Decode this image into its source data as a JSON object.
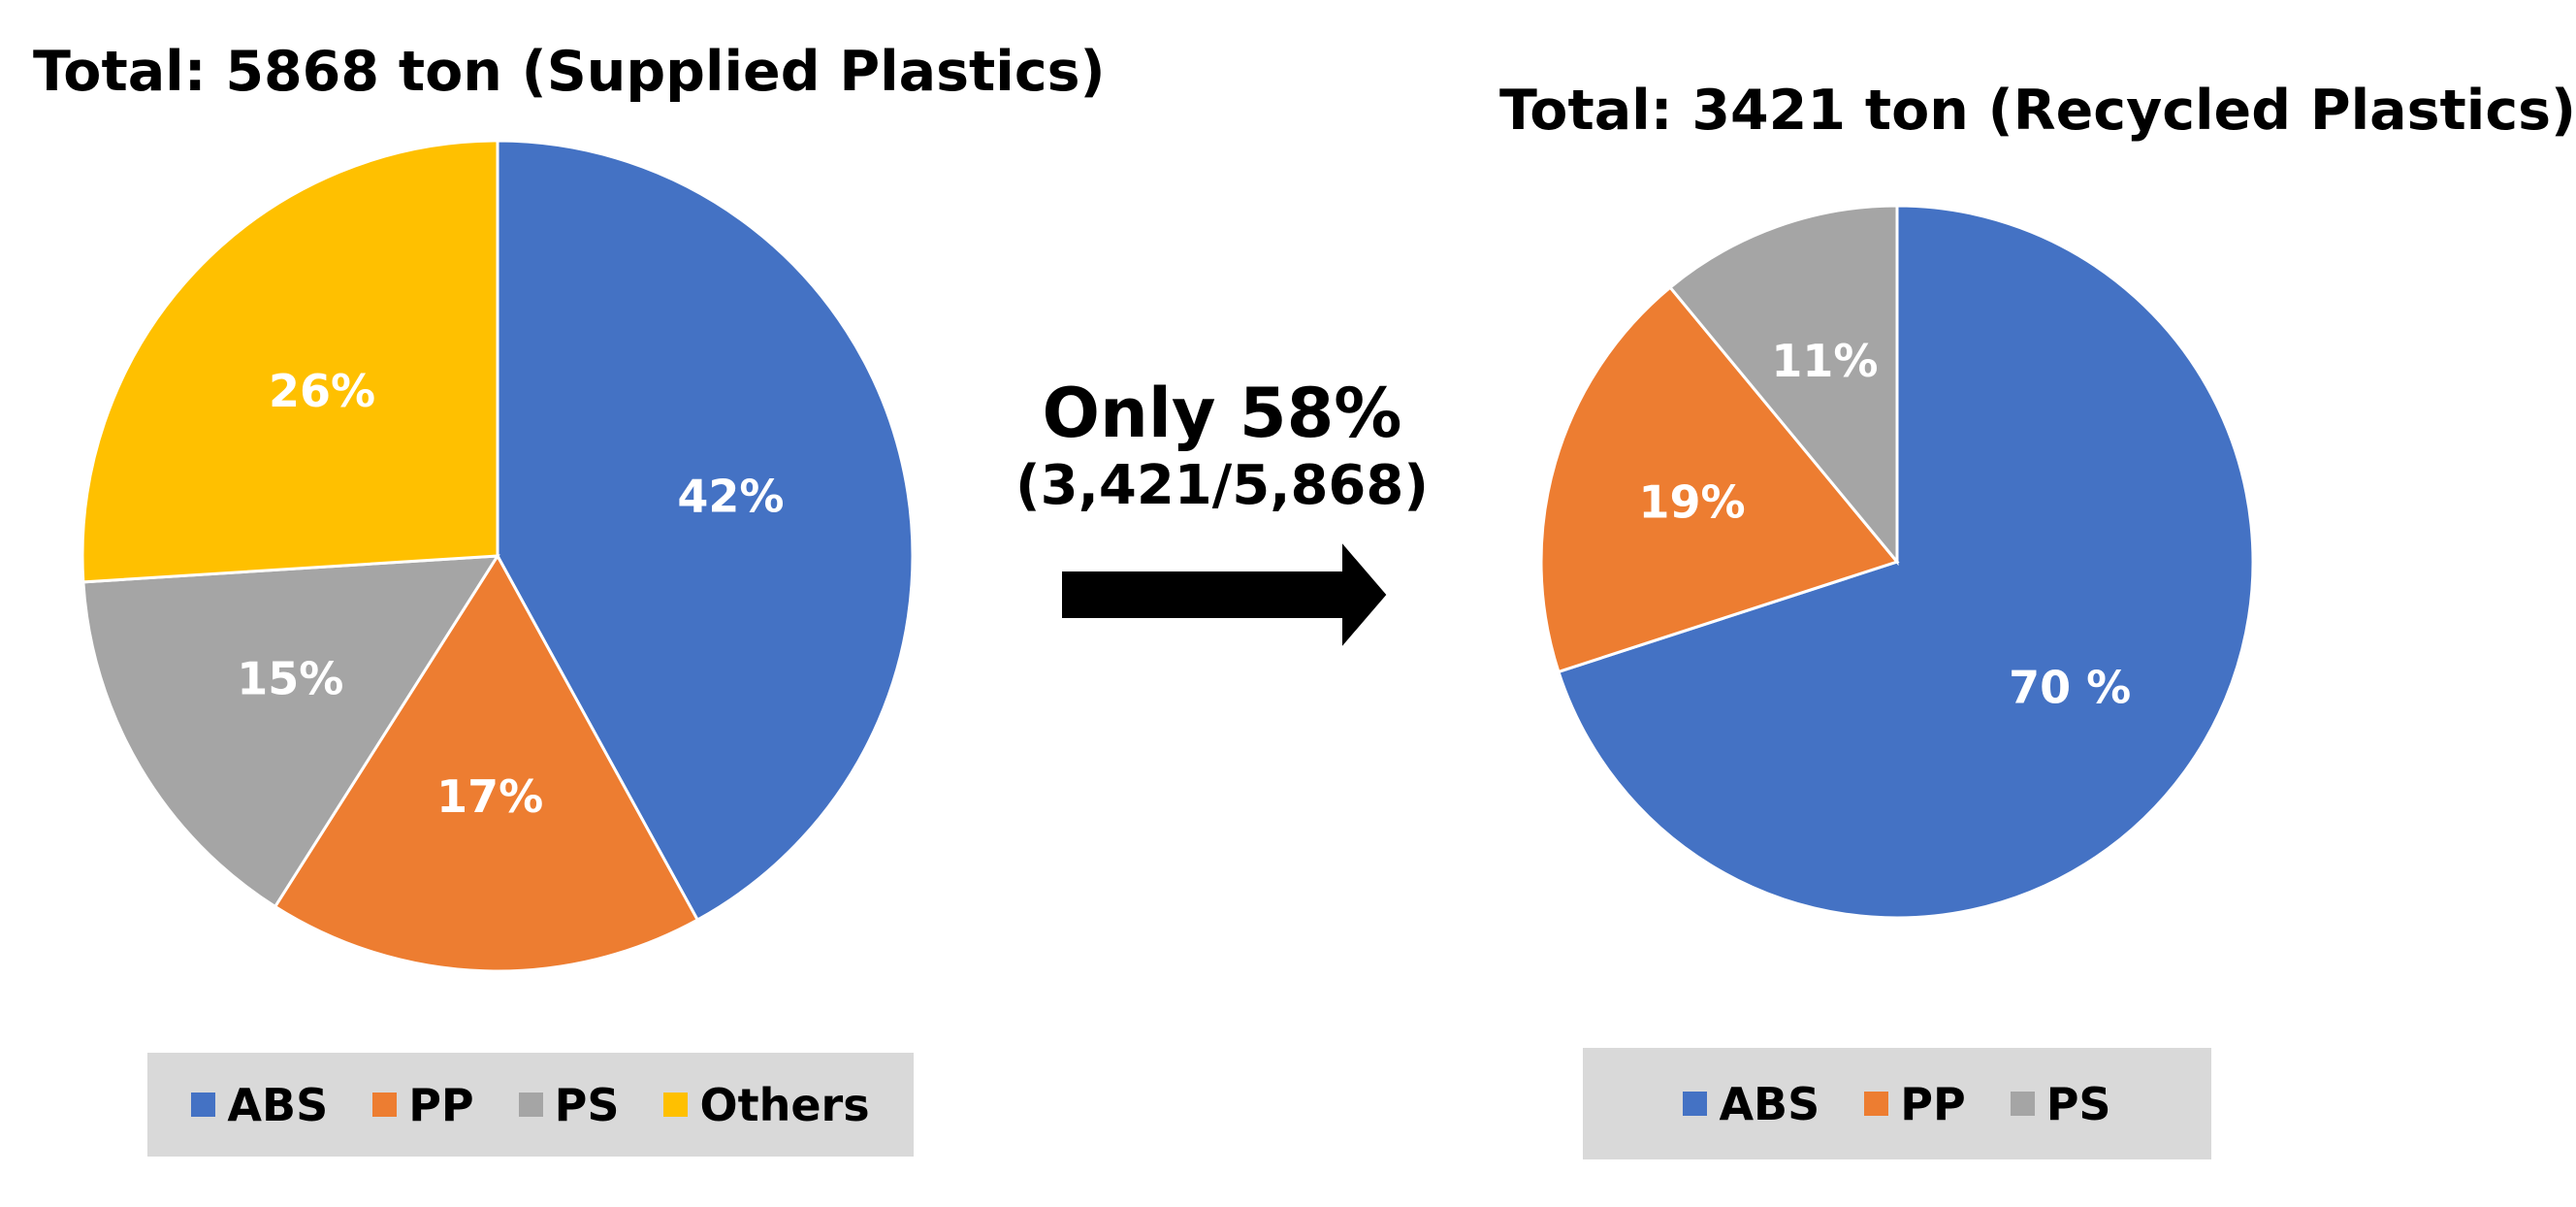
{
  "colors": {
    "ABS": "#4472c4",
    "PP": "#ed7d31",
    "PS": "#a5a5a5",
    "Others": "#ffc000"
  },
  "middle": {
    "headline": "Only 58%",
    "subline": "(3,421/5,868)"
  },
  "chart_data": [
    {
      "type": "pie",
      "title": "Total: 5868 ton (Supplied Plastics)",
      "categories": [
        "ABS",
        "PP",
        "PS",
        "Others"
      ],
      "values": [
        42,
        17,
        15,
        26
      ],
      "labels": [
        "42%",
        "17%",
        "15%",
        "26%"
      ],
      "legend_position": "bottom"
    },
    {
      "type": "pie",
      "title": "Total: 3421 ton (Recycled Plastics)",
      "categories": [
        "ABS",
        "PP",
        "PS"
      ],
      "values": [
        70,
        19,
        11
      ],
      "labels": [
        "70 %",
        "19%",
        "11%"
      ],
      "legend_position": "bottom"
    }
  ]
}
